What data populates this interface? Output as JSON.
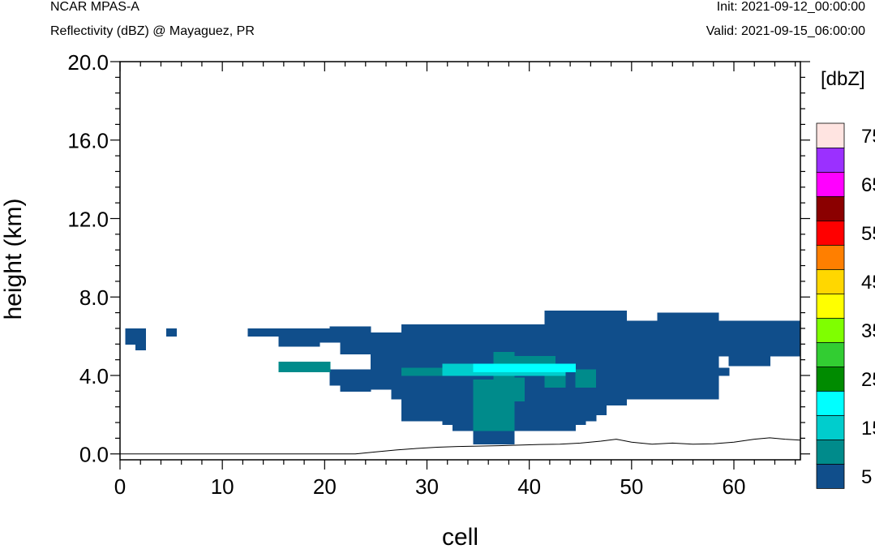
{
  "header": {
    "left_title": "NCAR MPAS-A",
    "left_subtitle": "Reflectivity (dBZ) @ Mayaguez, PR",
    "right_init": "Init: 2021-09-12_00:00:00",
    "right_valid": "Valid: 2021-09-15_06:00:00"
  },
  "chart_data": {
    "type": "heatmap",
    "xlabel": "cell",
    "ylabel": "height (km)",
    "xlim": [
      0,
      66.5
    ],
    "ylim": [
      -0.3,
      20
    ],
    "xticks": [
      0,
      10,
      20,
      30,
      40,
      50,
      60
    ],
    "xtick_labels": [
      "0",
      "10",
      "20",
      "30",
      "40",
      "50",
      "60"
    ],
    "yticks": [
      0,
      4,
      8,
      12,
      16,
      20
    ],
    "ytick_labels": [
      "0.0",
      "4.0",
      "8.0",
      "12.0",
      "16.0",
      "20.0"
    ],
    "colorbar": {
      "title": "[dbZ]",
      "levels": [
        5,
        10,
        15,
        20,
        25,
        30,
        35,
        40,
        45,
        50,
        55,
        60,
        65,
        70,
        75
      ],
      "labels": [
        "5",
        "15",
        "25",
        "35",
        "45",
        "55",
        "65",
        "75"
      ],
      "colors": [
        "#104E8B",
        "#008B8B",
        "#00CDCD",
        "#00FFFF",
        "#008B00",
        "#32CD32",
        "#7FFF00",
        "#FFFF00",
        "#FFD700",
        "#FF7F00",
        "#FF0000",
        "#8B0000",
        "#FF00FF",
        "#9B30FF",
        "#FFE4E1"
      ]
    },
    "reflectivity_regions": [
      {
        "dbz": 5,
        "x": [
          1.5,
          2.5
        ],
        "y": [
          5.3,
          5.6
        ]
      },
      {
        "dbz": 5,
        "x": [
          0.5,
          2.5
        ],
        "y": [
          5.6,
          6.4
        ]
      },
      {
        "dbz": 5,
        "x": [
          4.5,
          5.5
        ],
        "y": [
          6.0,
          6.4
        ]
      },
      {
        "dbz": 5,
        "x": [
          12.5,
          20.5
        ],
        "y": [
          6.0,
          6.4
        ]
      },
      {
        "dbz": 5,
        "x": [
          15.5,
          19.5
        ],
        "y": [
          5.5,
          6.0
        ]
      },
      {
        "dbz": 5,
        "x": [
          20.5,
          24.5
        ],
        "y": [
          6.0,
          6.5
        ]
      },
      {
        "dbz": 5,
        "x": [
          18.5,
          24.5
        ],
        "y": [
          5.7,
          6.0
        ]
      },
      {
        "dbz": 5,
        "x": [
          21.5,
          24.5
        ],
        "y": [
          5.1,
          5.7
        ]
      },
      {
        "dbz": 5,
        "x": [
          24.5,
          27.5
        ],
        "y": [
          4.8,
          6.2
        ]
      },
      {
        "dbz": 5,
        "x": [
          27.5,
          41.5
        ],
        "y": [
          4.8,
          6.6
        ]
      },
      {
        "dbz": 5,
        "x": [
          41.5,
          49.5
        ],
        "y": [
          4.8,
          7.3
        ]
      },
      {
        "dbz": 5,
        "x": [
          49.5,
          52.5
        ],
        "y": [
          4.8,
          6.8
        ]
      },
      {
        "dbz": 5,
        "x": [
          52.5,
          58.5
        ],
        "y": [
          4.8,
          7.2
        ]
      },
      {
        "dbz": 5,
        "x": [
          58.5,
          66.5
        ],
        "y": [
          5.0,
          6.8
        ]
      },
      {
        "dbz": 5,
        "x": [
          59.5,
          63.5
        ],
        "y": [
          4.5,
          5.0
        ]
      },
      {
        "dbz": 5,
        "x": [
          20.5,
          24.5
        ],
        "y": [
          3.5,
          4.3
        ]
      },
      {
        "dbz": 5,
        "x": [
          21.5,
          24.5
        ],
        "y": [
          3.2,
          3.5
        ]
      },
      {
        "dbz": 5,
        "x": [
          24.5,
          26.5
        ],
        "y": [
          3.3,
          4.8
        ]
      },
      {
        "dbz": 5,
        "x": [
          26.5,
          58.5
        ],
        "y": [
          2.8,
          4.8
        ]
      },
      {
        "dbz": 5,
        "x": [
          58.5,
          59.5
        ],
        "y": [
          4.0,
          4.4
        ]
      },
      {
        "dbz": 5,
        "x": [
          27.5,
          49.5
        ],
        "y": [
          2.5,
          2.8
        ]
      },
      {
        "dbz": 5,
        "x": [
          27.5,
          47.5
        ],
        "y": [
          2.0,
          2.5
        ]
      },
      {
        "dbz": 5,
        "x": [
          27.5,
          46.5
        ],
        "y": [
          1.7,
          2.0
        ]
      },
      {
        "dbz": 5,
        "x": [
          31.5,
          45.5
        ],
        "y": [
          1.5,
          1.7
        ]
      },
      {
        "dbz": 5,
        "x": [
          32.5,
          44.5
        ],
        "y": [
          1.2,
          1.5
        ]
      },
      {
        "dbz": 5,
        "x": [
          34.5,
          38.5
        ],
        "y": [
          0.5,
          1.2
        ]
      },
      {
        "dbz": 10,
        "x": [
          15.5,
          20.5
        ],
        "y": [
          4.2,
          4.7
        ]
      },
      {
        "dbz": 10,
        "x": [
          27.5,
          31.5
        ],
        "y": [
          4.0,
          4.4
        ]
      },
      {
        "dbz": 10,
        "x": [
          34.5,
          38.5
        ],
        "y": [
          1.2,
          3.8
        ]
      },
      {
        "dbz": 10,
        "x": [
          36.5,
          38.5
        ],
        "y": [
          3.8,
          5.2
        ]
      },
      {
        "dbz": 10,
        "x": [
          38.5,
          42.5
        ],
        "y": [
          4.4,
          5.0
        ]
      },
      {
        "dbz": 10,
        "x": [
          38.5,
          39.5
        ],
        "y": [
          2.7,
          3.9
        ]
      },
      {
        "dbz": 10,
        "x": [
          41.5,
          43.5
        ],
        "y": [
          3.4,
          4.3
        ]
      },
      {
        "dbz": 10,
        "x": [
          44.5,
          46.5
        ],
        "y": [
          3.4,
          4.3
        ]
      },
      {
        "dbz": 15,
        "x": [
          31.5,
          43.5
        ],
        "y": [
          4.0,
          4.6
        ]
      },
      {
        "dbz": 20,
        "x": [
          34.5,
          44.5
        ],
        "y": [
          4.2,
          4.6
        ]
      }
    ],
    "terrain": {
      "x": [
        0,
        23,
        25,
        27,
        29,
        31,
        33,
        35,
        37,
        39,
        41,
        43,
        45,
        47,
        48.5,
        50,
        52,
        54,
        56,
        58,
        60,
        62,
        63.5,
        65,
        66.5
      ],
      "y": [
        0,
        0,
        0.1,
        0.2,
        0.28,
        0.34,
        0.38,
        0.4,
        0.42,
        0.45,
        0.48,
        0.5,
        0.55,
        0.65,
        0.75,
        0.6,
        0.5,
        0.55,
        0.5,
        0.52,
        0.6,
        0.75,
        0.82,
        0.75,
        0.7
      ]
    }
  }
}
